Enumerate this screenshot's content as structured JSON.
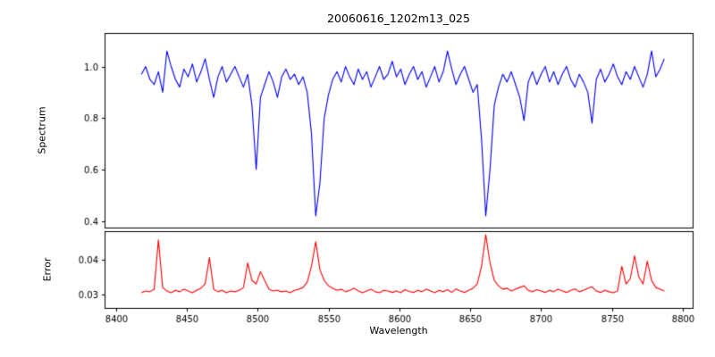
{
  "chart_data": {
    "type": "line",
    "title": "20060616_1202m13_025",
    "xlabel": "Wavelength",
    "xlim": [
      8392,
      8807
    ],
    "x_ticks": [
      8400,
      8450,
      8500,
      8550,
      8600,
      8650,
      8700,
      8750,
      8800
    ],
    "x_tick_labels": [
      "8400",
      "8450",
      "8500",
      "8550",
      "8600",
      "8650",
      "8700",
      "8750",
      "8800"
    ],
    "grid": false,
    "legend": "none",
    "x": [
      8418,
      8421,
      8424,
      8427,
      8430,
      8433,
      8436,
      8439,
      8442,
      8445,
      8448,
      8451,
      8454,
      8457,
      8460,
      8463,
      8466,
      8469,
      8472,
      8475,
      8478,
      8481,
      8484,
      8487,
      8490,
      8493,
      8496,
      8499,
      8502,
      8505,
      8508,
      8511,
      8514,
      8517,
      8520,
      8523,
      8526,
      8529,
      8532,
      8535,
      8538,
      8541,
      8544,
      8547,
      8550,
      8553,
      8556,
      8559,
      8562,
      8565,
      8568,
      8571,
      8574,
      8577,
      8580,
      8583,
      8586,
      8589,
      8592,
      8595,
      8598,
      8601,
      8604,
      8607,
      8610,
      8613,
      8616,
      8619,
      8622,
      8625,
      8628,
      8631,
      8634,
      8637,
      8640,
      8643,
      8646,
      8649,
      8652,
      8655,
      8658,
      8661,
      8664,
      8667,
      8670,
      8673,
      8676,
      8679,
      8682,
      8685,
      8688,
      8691,
      8694,
      8697,
      8700,
      8703,
      8706,
      8709,
      8712,
      8715,
      8718,
      8721,
      8724,
      8727,
      8730,
      8733,
      8736,
      8739,
      8742,
      8745,
      8748,
      8751,
      8754,
      8757,
      8760,
      8763,
      8766,
      8769,
      8772,
      8775,
      8778,
      8781,
      8784,
      8787
    ],
    "panels": [
      {
        "name": "spectrum",
        "ylabel": "Spectrum",
        "color": "#0000ee",
        "ylim": [
          0.375,
          1.13
        ],
        "y_ticks": [
          0.4,
          0.6,
          0.8,
          1.0
        ],
        "y_tick_labels": [
          "0.4",
          "0.6",
          "0.8",
          "1.0"
        ],
        "absorption_lines": [
          8498,
          8542,
          8662
        ],
        "values": [
          0.97,
          1.0,
          0.95,
          0.93,
          0.98,
          0.9,
          1.06,
          1.0,
          0.95,
          0.92,
          0.99,
          0.96,
          1.01,
          0.94,
          0.98,
          1.03,
          0.95,
          0.88,
          0.96,
          1.0,
          0.94,
          0.97,
          1.0,
          0.96,
          0.92,
          0.97,
          0.85,
          0.6,
          0.88,
          0.93,
          0.98,
          0.94,
          0.88,
          0.96,
          0.99,
          0.95,
          0.97,
          0.93,
          0.96,
          0.9,
          0.74,
          0.42,
          0.55,
          0.8,
          0.89,
          0.95,
          0.98,
          0.94,
          1.0,
          0.96,
          0.93,
          0.99,
          0.95,
          0.98,
          0.92,
          0.96,
          1.0,
          0.95,
          0.97,
          1.02,
          0.96,
          0.99,
          0.93,
          0.97,
          1.0,
          0.95,
          0.98,
          0.92,
          0.96,
          1.0,
          0.94,
          0.98,
          1.06,
          0.99,
          0.93,
          0.97,
          1.0,
          0.95,
          0.9,
          0.93,
          0.72,
          0.42,
          0.6,
          0.85,
          0.92,
          0.97,
          0.94,
          0.98,
          0.93,
          0.88,
          0.79,
          0.94,
          0.98,
          0.93,
          0.97,
          1.0,
          0.94,
          0.98,
          0.93,
          0.97,
          1.0,
          0.95,
          0.92,
          0.97,
          0.94,
          0.9,
          0.78,
          0.95,
          0.99,
          0.94,
          0.97,
          1.01,
          0.96,
          0.93,
          0.98,
          0.95,
          1.0,
          0.96,
          0.92,
          0.97,
          1.06,
          0.96,
          0.99,
          1.03
        ]
      },
      {
        "name": "error",
        "ylabel": "Error",
        "color": "#ff0000",
        "ylim": [
          0.0262,
          0.048
        ],
        "y_ticks": [
          0.03,
          0.04
        ],
        "y_tick_labels": [
          "0.03",
          "0.04"
        ],
        "values": [
          0.0305,
          0.031,
          0.0308,
          0.0315,
          0.0455,
          0.032,
          0.031,
          0.0305,
          0.0312,
          0.0308,
          0.0315,
          0.031,
          0.0305,
          0.0312,
          0.0318,
          0.033,
          0.0405,
          0.0315,
          0.0308,
          0.0312,
          0.0305,
          0.031,
          0.0308,
          0.0312,
          0.032,
          0.039,
          0.034,
          0.033,
          0.0365,
          0.034,
          0.0315,
          0.031,
          0.0312,
          0.0308,
          0.031,
          0.0305,
          0.0312,
          0.0315,
          0.032,
          0.0335,
          0.038,
          0.045,
          0.037,
          0.034,
          0.0325,
          0.0318,
          0.0312,
          0.0315,
          0.0308,
          0.0312,
          0.0318,
          0.031,
          0.0305,
          0.031,
          0.0315,
          0.0308,
          0.0305,
          0.0312,
          0.031,
          0.0306,
          0.031,
          0.0305,
          0.0314,
          0.0309,
          0.0306,
          0.0312,
          0.0308,
          0.0315,
          0.031,
          0.0305,
          0.0312,
          0.0308,
          0.0314,
          0.0306,
          0.0316,
          0.031,
          0.0306,
          0.0312,
          0.0318,
          0.033,
          0.038,
          0.047,
          0.039,
          0.034,
          0.0325,
          0.0315,
          0.0318,
          0.031,
          0.0315,
          0.032,
          0.0325,
          0.0312,
          0.0308,
          0.0314,
          0.031,
          0.0306,
          0.0312,
          0.0308,
          0.0315,
          0.031,
          0.0306,
          0.0312,
          0.0316,
          0.0308,
          0.0312,
          0.0318,
          0.0322,
          0.031,
          0.0306,
          0.0312,
          0.0308,
          0.0305,
          0.031,
          0.038,
          0.033,
          0.0345,
          0.041,
          0.035,
          0.033,
          0.0395,
          0.034,
          0.032,
          0.0315,
          0.031
        ]
      }
    ]
  }
}
